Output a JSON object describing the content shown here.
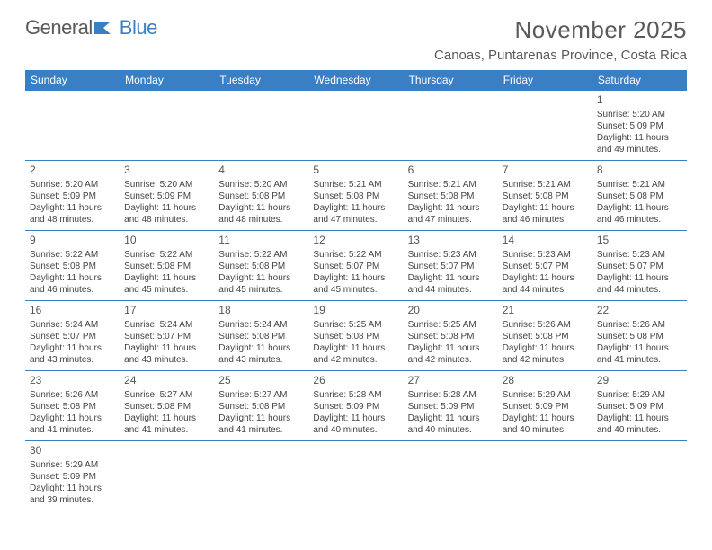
{
  "logo": {
    "text1": "General",
    "text2": "Blue"
  },
  "title": "November 2025",
  "location": "Canoas, Puntarenas Province, Costa Rica",
  "colors": {
    "header_bg": "#3a7fc4",
    "header_text": "#ffffff",
    "border": "#3a7fc4",
    "text": "#444444",
    "title_text": "#5a5a5a"
  },
  "typography": {
    "title_fontsize": 26,
    "location_fontsize": 15,
    "dayheader_fontsize": 12,
    "daynum_fontsize": 12,
    "info_fontsize": 10
  },
  "layout": {
    "columns": 7,
    "rows": 6
  },
  "days_of_week": [
    "Sunday",
    "Monday",
    "Tuesday",
    "Wednesday",
    "Thursday",
    "Friday",
    "Saturday"
  ],
  "cells": [
    {
      "blank": true
    },
    {
      "blank": true
    },
    {
      "blank": true
    },
    {
      "blank": true
    },
    {
      "blank": true
    },
    {
      "blank": true
    },
    {
      "day": "1",
      "sunrise": "5:20 AM",
      "sunset": "5:09 PM",
      "daylight": "11 hours and 49 minutes."
    },
    {
      "day": "2",
      "sunrise": "5:20 AM",
      "sunset": "5:09 PM",
      "daylight": "11 hours and 48 minutes."
    },
    {
      "day": "3",
      "sunrise": "5:20 AM",
      "sunset": "5:09 PM",
      "daylight": "11 hours and 48 minutes."
    },
    {
      "day": "4",
      "sunrise": "5:20 AM",
      "sunset": "5:08 PM",
      "daylight": "11 hours and 48 minutes."
    },
    {
      "day": "5",
      "sunrise": "5:21 AM",
      "sunset": "5:08 PM",
      "daylight": "11 hours and 47 minutes."
    },
    {
      "day": "6",
      "sunrise": "5:21 AM",
      "sunset": "5:08 PM",
      "daylight": "11 hours and 47 minutes."
    },
    {
      "day": "7",
      "sunrise": "5:21 AM",
      "sunset": "5:08 PM",
      "daylight": "11 hours and 46 minutes."
    },
    {
      "day": "8",
      "sunrise": "5:21 AM",
      "sunset": "5:08 PM",
      "daylight": "11 hours and 46 minutes."
    },
    {
      "day": "9",
      "sunrise": "5:22 AM",
      "sunset": "5:08 PM",
      "daylight": "11 hours and 46 minutes."
    },
    {
      "day": "10",
      "sunrise": "5:22 AM",
      "sunset": "5:08 PM",
      "daylight": "11 hours and 45 minutes."
    },
    {
      "day": "11",
      "sunrise": "5:22 AM",
      "sunset": "5:08 PM",
      "daylight": "11 hours and 45 minutes."
    },
    {
      "day": "12",
      "sunrise": "5:22 AM",
      "sunset": "5:07 PM",
      "daylight": "11 hours and 45 minutes."
    },
    {
      "day": "13",
      "sunrise": "5:23 AM",
      "sunset": "5:07 PM",
      "daylight": "11 hours and 44 minutes."
    },
    {
      "day": "14",
      "sunrise": "5:23 AM",
      "sunset": "5:07 PM",
      "daylight": "11 hours and 44 minutes."
    },
    {
      "day": "15",
      "sunrise": "5:23 AM",
      "sunset": "5:07 PM",
      "daylight": "11 hours and 44 minutes."
    },
    {
      "day": "16",
      "sunrise": "5:24 AM",
      "sunset": "5:07 PM",
      "daylight": "11 hours and 43 minutes."
    },
    {
      "day": "17",
      "sunrise": "5:24 AM",
      "sunset": "5:07 PM",
      "daylight": "11 hours and 43 minutes."
    },
    {
      "day": "18",
      "sunrise": "5:24 AM",
      "sunset": "5:08 PM",
      "daylight": "11 hours and 43 minutes."
    },
    {
      "day": "19",
      "sunrise": "5:25 AM",
      "sunset": "5:08 PM",
      "daylight": "11 hours and 42 minutes."
    },
    {
      "day": "20",
      "sunrise": "5:25 AM",
      "sunset": "5:08 PM",
      "daylight": "11 hours and 42 minutes."
    },
    {
      "day": "21",
      "sunrise": "5:26 AM",
      "sunset": "5:08 PM",
      "daylight": "11 hours and 42 minutes."
    },
    {
      "day": "22",
      "sunrise": "5:26 AM",
      "sunset": "5:08 PM",
      "daylight": "11 hours and 41 minutes."
    },
    {
      "day": "23",
      "sunrise": "5:26 AM",
      "sunset": "5:08 PM",
      "daylight": "11 hours and 41 minutes."
    },
    {
      "day": "24",
      "sunrise": "5:27 AM",
      "sunset": "5:08 PM",
      "daylight": "11 hours and 41 minutes."
    },
    {
      "day": "25",
      "sunrise": "5:27 AM",
      "sunset": "5:08 PM",
      "daylight": "11 hours and 41 minutes."
    },
    {
      "day": "26",
      "sunrise": "5:28 AM",
      "sunset": "5:09 PM",
      "daylight": "11 hours and 40 minutes."
    },
    {
      "day": "27",
      "sunrise": "5:28 AM",
      "sunset": "5:09 PM",
      "daylight": "11 hours and 40 minutes."
    },
    {
      "day": "28",
      "sunrise": "5:29 AM",
      "sunset": "5:09 PM",
      "daylight": "11 hours and 40 minutes."
    },
    {
      "day": "29",
      "sunrise": "5:29 AM",
      "sunset": "5:09 PM",
      "daylight": "11 hours and 40 minutes."
    },
    {
      "day": "30",
      "sunrise": "5:29 AM",
      "sunset": "5:09 PM",
      "daylight": "11 hours and 39 minutes."
    },
    {
      "blank": true
    },
    {
      "blank": true
    },
    {
      "blank": true
    },
    {
      "blank": true
    },
    {
      "blank": true
    },
    {
      "blank": true
    }
  ],
  "labels": {
    "sunrise": "Sunrise: ",
    "sunset": "Sunset: ",
    "daylight": "Daylight: "
  }
}
